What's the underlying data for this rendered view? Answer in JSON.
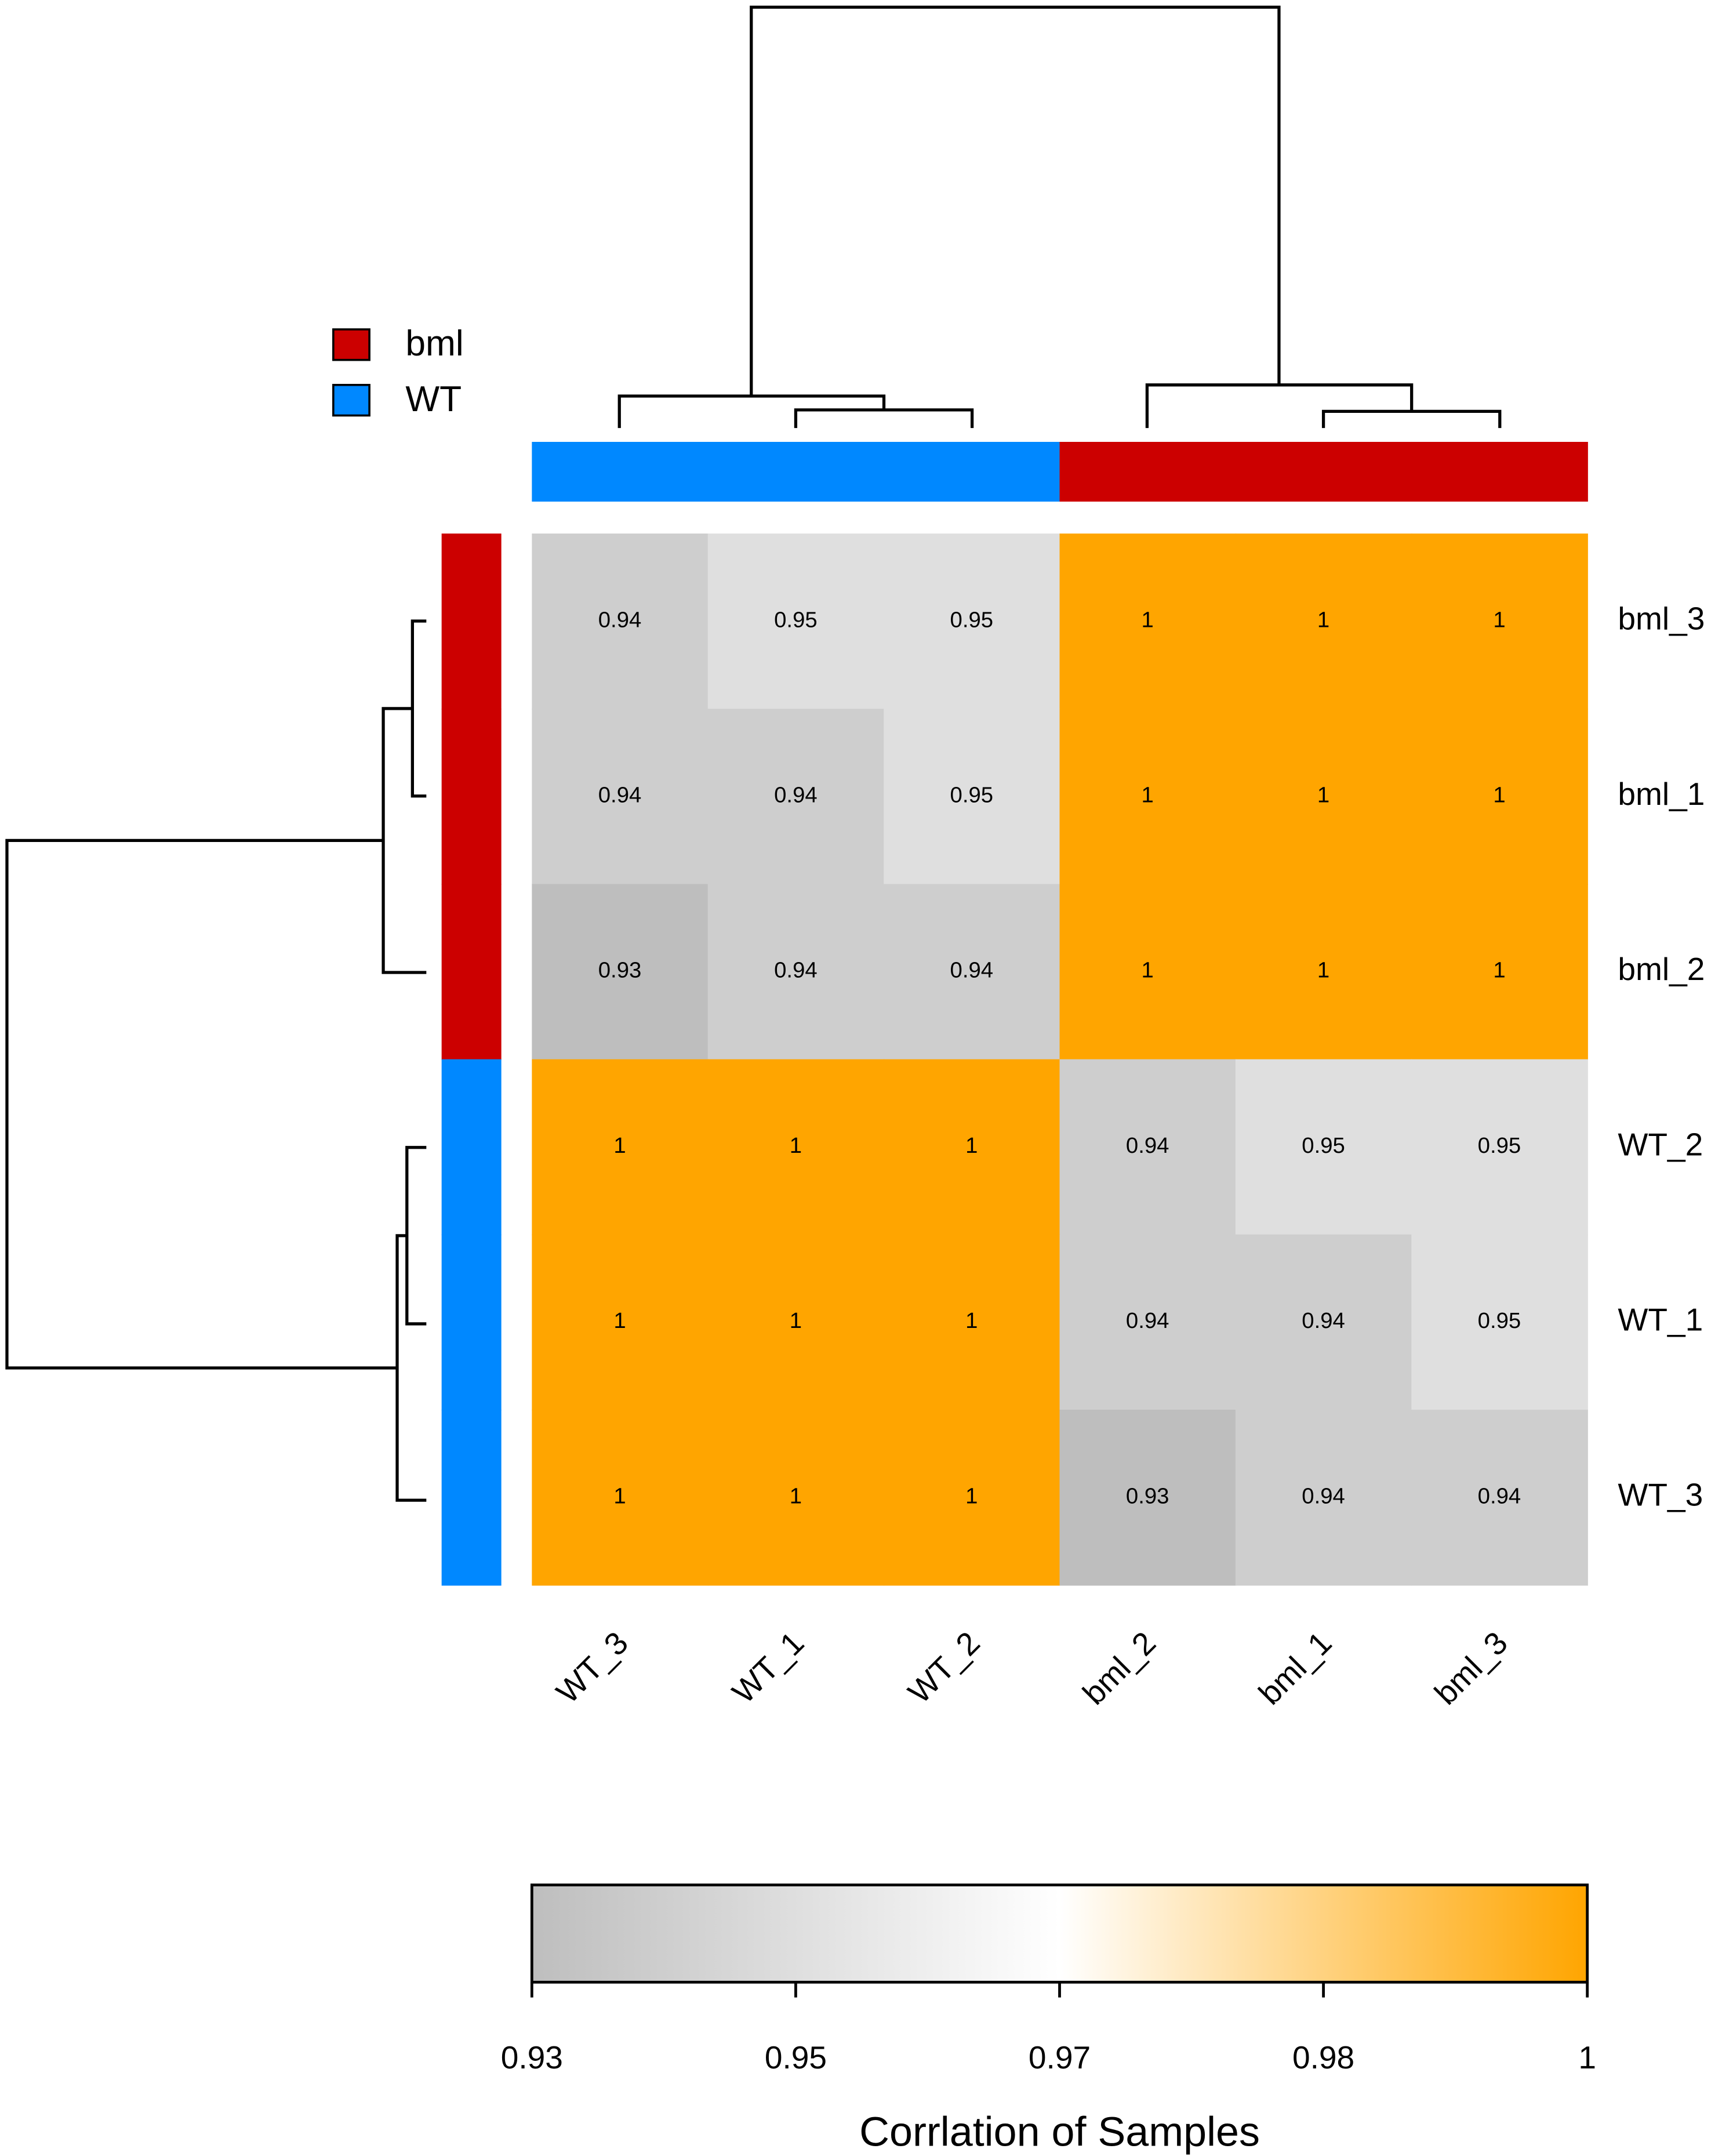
{
  "chart_data": {
    "type": "heatmap",
    "title": "Corrlation of Samples",
    "columns": [
      "WT_3",
      "WT_1",
      "WT_2",
      "bml_2",
      "bml_1",
      "bml_3"
    ],
    "rows": [
      "bml_3",
      "bml_1",
      "bml_2",
      "WT_2",
      "WT_1",
      "WT_3"
    ],
    "values": [
      [
        0.94,
        0.95,
        0.95,
        1,
        1,
        1
      ],
      [
        0.94,
        0.94,
        0.95,
        1,
        1,
        1
      ],
      [
        0.93,
        0.94,
        0.94,
        1,
        1,
        1
      ],
      [
        1,
        1,
        1,
        0.94,
        0.95,
        0.95
      ],
      [
        1,
        1,
        1,
        0.94,
        0.94,
        0.95
      ],
      [
        1,
        1,
        1,
        0.93,
        0.94,
        0.94
      ]
    ],
    "colorbar_ticks": [
      0.93,
      0.95,
      0.97,
      0.98,
      1
    ],
    "color_scale": [
      "#bebebe",
      "#ffffff",
      "#ffa500"
    ],
    "legend": [
      {
        "name": "bml",
        "color": "#cc0000"
      },
      {
        "name": "WT",
        "color": "#0088ff"
      }
    ],
    "column_colors": [
      "#0088ff",
      "#0088ff",
      "#0088ff",
      "#cc0000",
      "#cc0000",
      "#cc0000"
    ],
    "row_colors": [
      "#cc0000",
      "#cc0000",
      "#cc0000",
      "#0088ff",
      "#0088ff",
      "#0088ff"
    ]
  }
}
